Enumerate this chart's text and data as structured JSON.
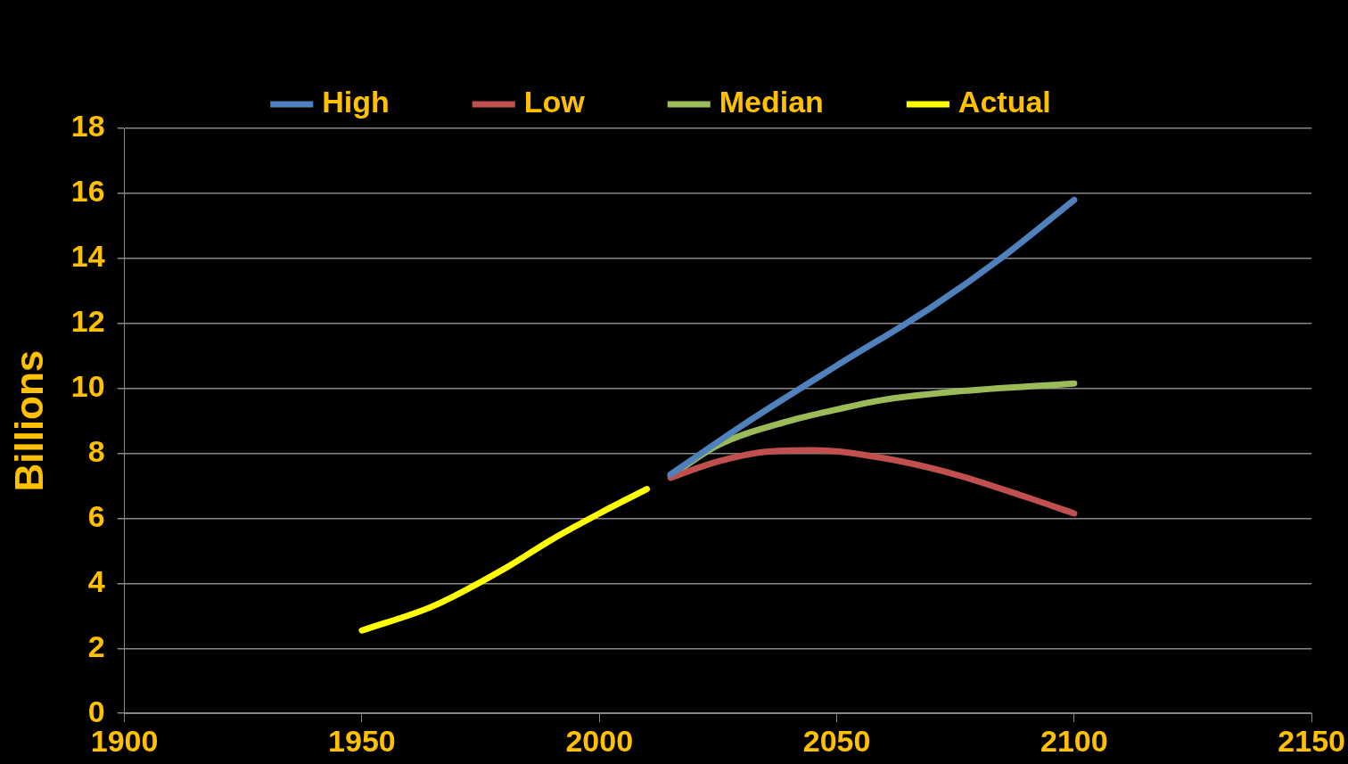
{
  "chart_data": {
    "type": "line",
    "ylabel": "Billions",
    "xlim": [
      1900,
      2150
    ],
    "xticks": [
      1900,
      1950,
      2000,
      2050,
      2100,
      2150
    ],
    "ylim": [
      0,
      18
    ],
    "yticks": [
      0,
      2,
      4,
      6,
      8,
      10,
      12,
      14,
      16,
      18
    ],
    "grid": "y",
    "legend": "top",
    "line_style": "solid",
    "marker": "none",
    "series": [
      {
        "name": "High",
        "color": "#4f81bd",
        "x": [
          2015,
          2030,
          2050,
          2070,
          2085,
          2100
        ],
        "values": [
          7.35,
          8.85,
          10.7,
          12.5,
          14.05,
          15.8
        ]
      },
      {
        "name": "Low",
        "color": "#c0504d",
        "x": [
          2015,
          2025,
          2035,
          2045,
          2060,
          2075,
          2090,
          2100
        ],
        "values": [
          7.25,
          7.75,
          8.05,
          8.1,
          7.85,
          7.35,
          6.65,
          6.15
        ]
      },
      {
        "name": "Median",
        "color": "#9bbb59",
        "x": [
          2015,
          2025,
          2040,
          2050,
          2060,
          2075,
          2100
        ],
        "values": [
          7.3,
          8.25,
          9.0,
          9.35,
          9.65,
          9.9,
          10.15
        ]
      },
      {
        "name": "Actual",
        "color": "#ffff00",
        "x": [
          1950,
          1965,
          1980,
          1990,
          2000,
          2010
        ],
        "values": [
          2.55,
          3.3,
          4.45,
          5.35,
          6.15,
          6.9
        ]
      }
    ]
  }
}
